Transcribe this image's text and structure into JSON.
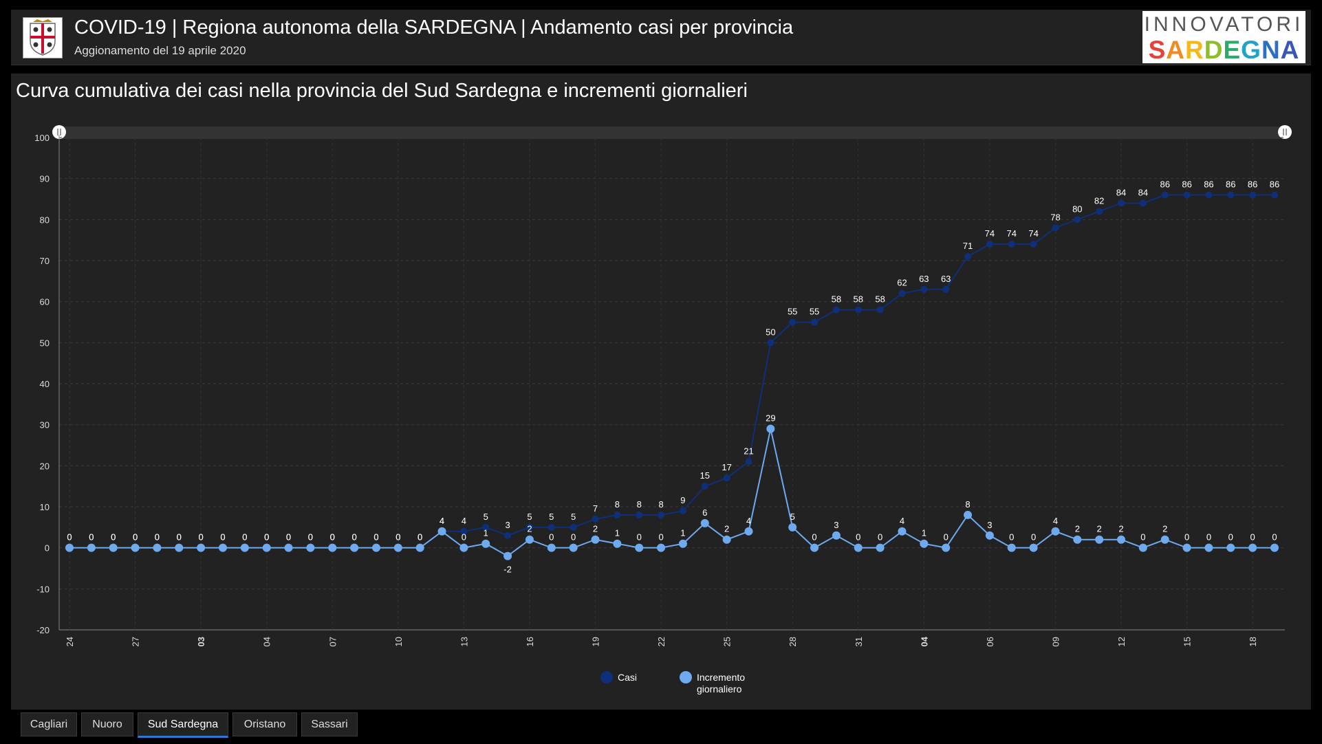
{
  "header": {
    "title": "COVID-19 | Regiona autonoma della SARDEGNA | Andamento casi per provincia",
    "subtitle": "Aggionamento del 19 aprile 2020",
    "logo_line1": "INNOVATORI",
    "logo_line2_letters": [
      {
        "ch": "S",
        "color": "#e6423a"
      },
      {
        "ch": "A",
        "color": "#f08a24"
      },
      {
        "ch": "R",
        "color": "#f5b719"
      },
      {
        "ch": "D",
        "color": "#8cbd2a"
      },
      {
        "ch": "E",
        "color": "#2bab6a"
      },
      {
        "ch": "G",
        "color": "#1fa3c9"
      },
      {
        "ch": "N",
        "color": "#2d6fc2"
      },
      {
        "ch": "A",
        "color": "#3a56b7"
      }
    ]
  },
  "panel": {
    "title": "Curva cumulativa dei casi nella provincia del Sud Sardegna e incrementi giornalieri"
  },
  "chart_data": {
    "type": "line",
    "ylim": [
      -20,
      100
    ],
    "yticks": [
      -20,
      -10,
      0,
      10,
      20,
      30,
      40,
      50,
      60,
      70,
      80,
      90,
      100
    ],
    "grid": true,
    "legend_position": "bottom",
    "xtick_labels": [
      "24",
      "27",
      "03",
      "04",
      "07",
      "10",
      "13",
      "16",
      "19",
      "22",
      "25",
      "28",
      "31",
      "04",
      "06",
      "09",
      "12",
      "15",
      "18"
    ],
    "xtick_bold": [
      "03",
      "04"
    ],
    "series": [
      {
        "name": "Casi",
        "color": "#0e2f7a",
        "values": [
          0,
          0,
          0,
          0,
          0,
          0,
          0,
          0,
          0,
          0,
          0,
          0,
          0,
          0,
          0,
          0,
          0,
          4,
          4,
          5,
          3,
          5,
          5,
          5,
          7,
          8,
          8,
          8,
          9,
          15,
          17,
          21,
          50,
          55,
          55,
          58,
          58,
          58,
          62,
          63,
          63,
          71,
          74,
          74,
          74,
          78,
          80,
          82,
          84,
          84,
          86,
          86,
          86,
          86,
          86,
          86
        ]
      },
      {
        "name": "Incremento giornaliero",
        "color": "#6eaaf0",
        "values": [
          0,
          0,
          0,
          0,
          0,
          0,
          0,
          0,
          0,
          0,
          0,
          0,
          0,
          0,
          0,
          0,
          0,
          4,
          0,
          1,
          -2,
          2,
          0,
          0,
          2,
          1,
          0,
          0,
          1,
          6,
          2,
          4,
          29,
          5,
          0,
          3,
          0,
          0,
          4,
          1,
          0,
          8,
          3,
          0,
          0,
          4,
          2,
          2,
          2,
          0,
          2,
          0,
          0,
          0,
          0,
          0
        ]
      }
    ]
  },
  "legend": {
    "casi": "Casi",
    "incremento_line1": "Incremento",
    "incremento_line2": "giornaliero"
  },
  "tabs": [
    {
      "label": "Cagliari",
      "active": false
    },
    {
      "label": "Nuoro",
      "active": false
    },
    {
      "label": "Sud Sardegna",
      "active": true
    },
    {
      "label": "Oristano",
      "active": false
    },
    {
      "label": "Sassari",
      "active": false
    }
  ]
}
